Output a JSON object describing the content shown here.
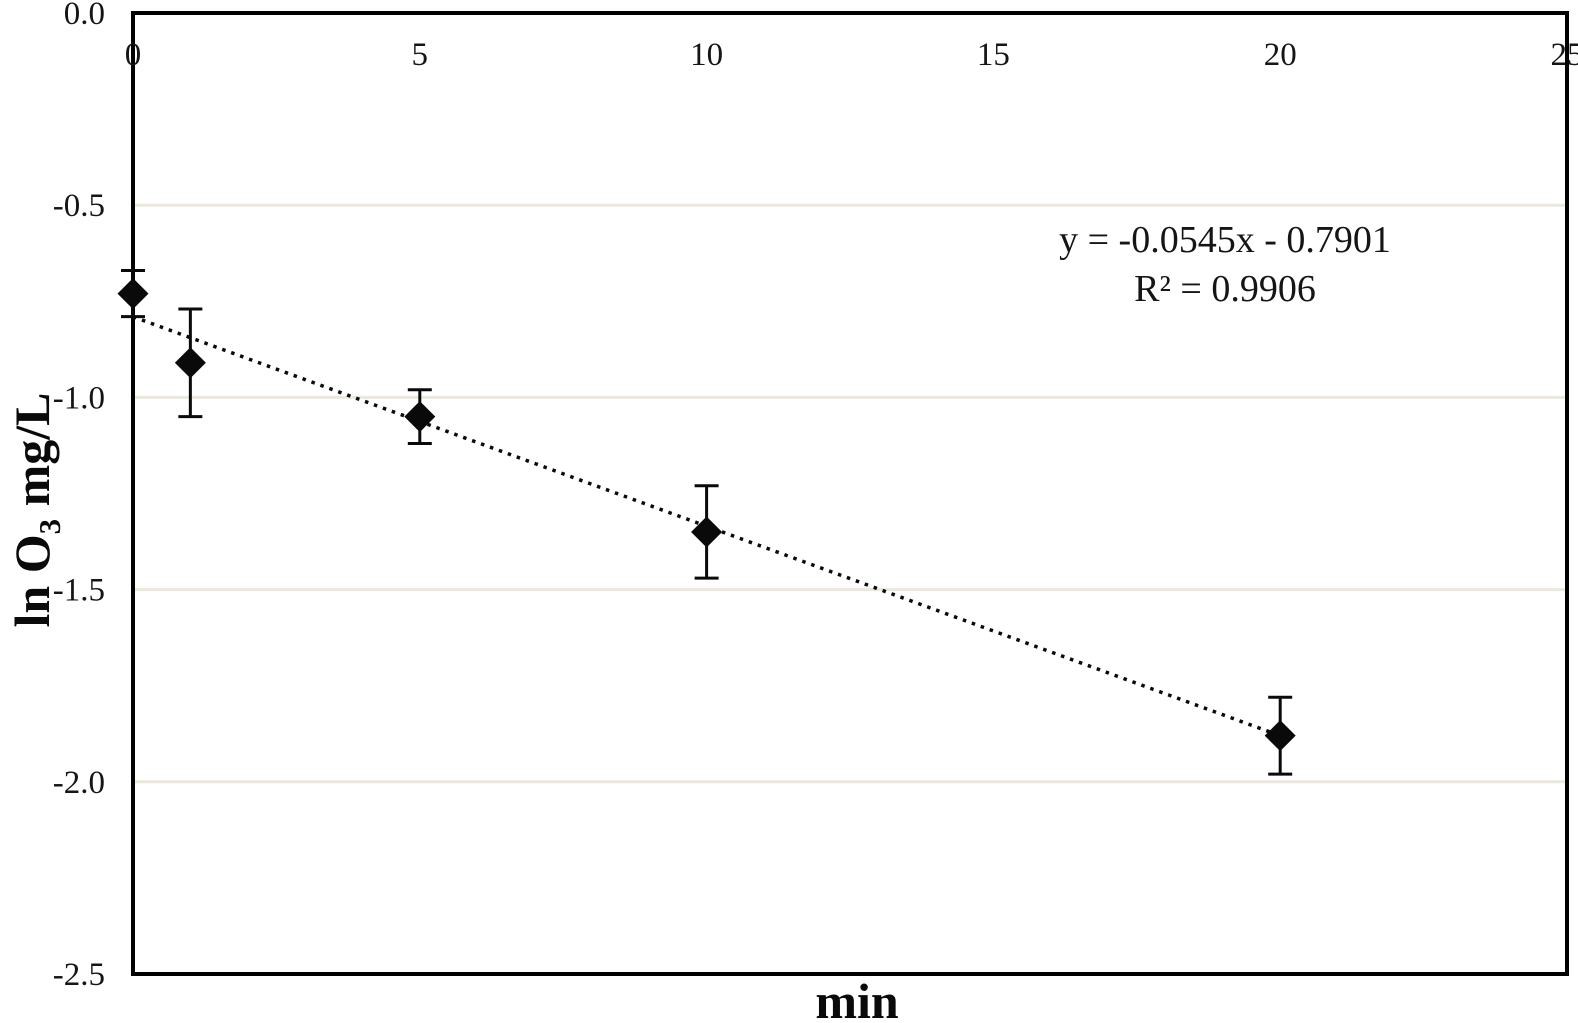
{
  "figure": {
    "background": "#ffffff",
    "description": "Scatter chart of ln ozone concentration versus time with error bars and dotted linear trendline"
  },
  "chart_data": {
    "type": "scatter",
    "title": "",
    "xlabel": "min",
    "ylabel": "ln O3 mg/L",
    "ylabel_parts": {
      "pre": "ln O",
      "sub": "3",
      "post": " mg/L"
    },
    "xlim": [
      0,
      25
    ],
    "ylim": [
      0,
      -2.5
    ],
    "x_tick_side": "top",
    "x_ticks": [
      {
        "value": 0,
        "label": "0"
      },
      {
        "value": 5,
        "label": "5"
      },
      {
        "value": 10,
        "label": "10"
      },
      {
        "value": 15,
        "label": "15"
      },
      {
        "value": 20,
        "label": "20"
      },
      {
        "value": 25,
        "label": "25"
      }
    ],
    "y_ticks": [
      {
        "value": 0,
        "label": "0.0"
      },
      {
        "value": -0.5,
        "label": "-0.5"
      },
      {
        "value": -1.0,
        "label": "-1.0"
      },
      {
        "value": -1.5,
        "label": "-1.5"
      },
      {
        "value": -2.0,
        "label": "-2.0"
      },
      {
        "value": -2.5,
        "label": "-2.5"
      }
    ],
    "gridlines_y": [
      -0.5,
      -1.0,
      -1.5,
      -2.0
    ],
    "grid": "horizontal only",
    "legend": "none",
    "series": [
      {
        "name": "ln O3",
        "marker": "diamond",
        "points": [
          {
            "x": 0,
            "y": -0.73,
            "err": 0.06
          },
          {
            "x": 1,
            "y": -0.91,
            "err": 0.14
          },
          {
            "x": 5,
            "y": -1.05,
            "err": 0.07
          },
          {
            "x": 10,
            "y": -1.35,
            "err": 0.12
          },
          {
            "x": 20,
            "y": -1.88,
            "err": 0.1
          }
        ]
      }
    ],
    "trendline": {
      "slope": -0.0545,
      "intercept": -0.7901,
      "x_start": 0,
      "x_end": 20,
      "style": "dotted"
    },
    "annotations": {
      "equation": "y = -0.0545x - 0.7901",
      "r_squared": "R² = 0.9906"
    },
    "colors": {
      "axis": "#000000",
      "gridline": "#ece9dc",
      "marker": "#0a0a0a",
      "trendline": "#0a0a0a",
      "text": "#151515",
      "background": "#ffffff"
    }
  }
}
